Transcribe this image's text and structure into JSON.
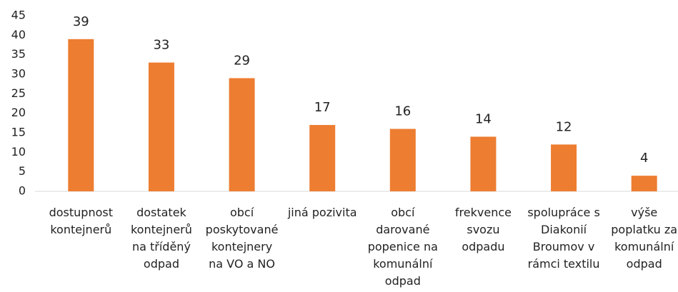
{
  "chart_data": {
    "type": "bar",
    "categories": [
      "dostupnost kontejnerů",
      "dostatek kontejnerů na tříděný odpad",
      "obcí poskytované kontejnery na VO a NO",
      "jiná pozivita",
      "obcí darované popenice na komunální odpad",
      "frekvence svozu odpadu",
      "spolupráce s Diakonií Broumov v rámci textilu",
      "výše poplatku za komunální odpad"
    ],
    "values": [
      39,
      33,
      29,
      17,
      16,
      14,
      12,
      4
    ],
    "color": "#ed7d31",
    "ylim": [
      0,
      45
    ],
    "yticks": [
      0,
      5,
      10,
      15,
      20,
      25,
      30,
      35,
      40,
      45
    ],
    "grid": false
  }
}
